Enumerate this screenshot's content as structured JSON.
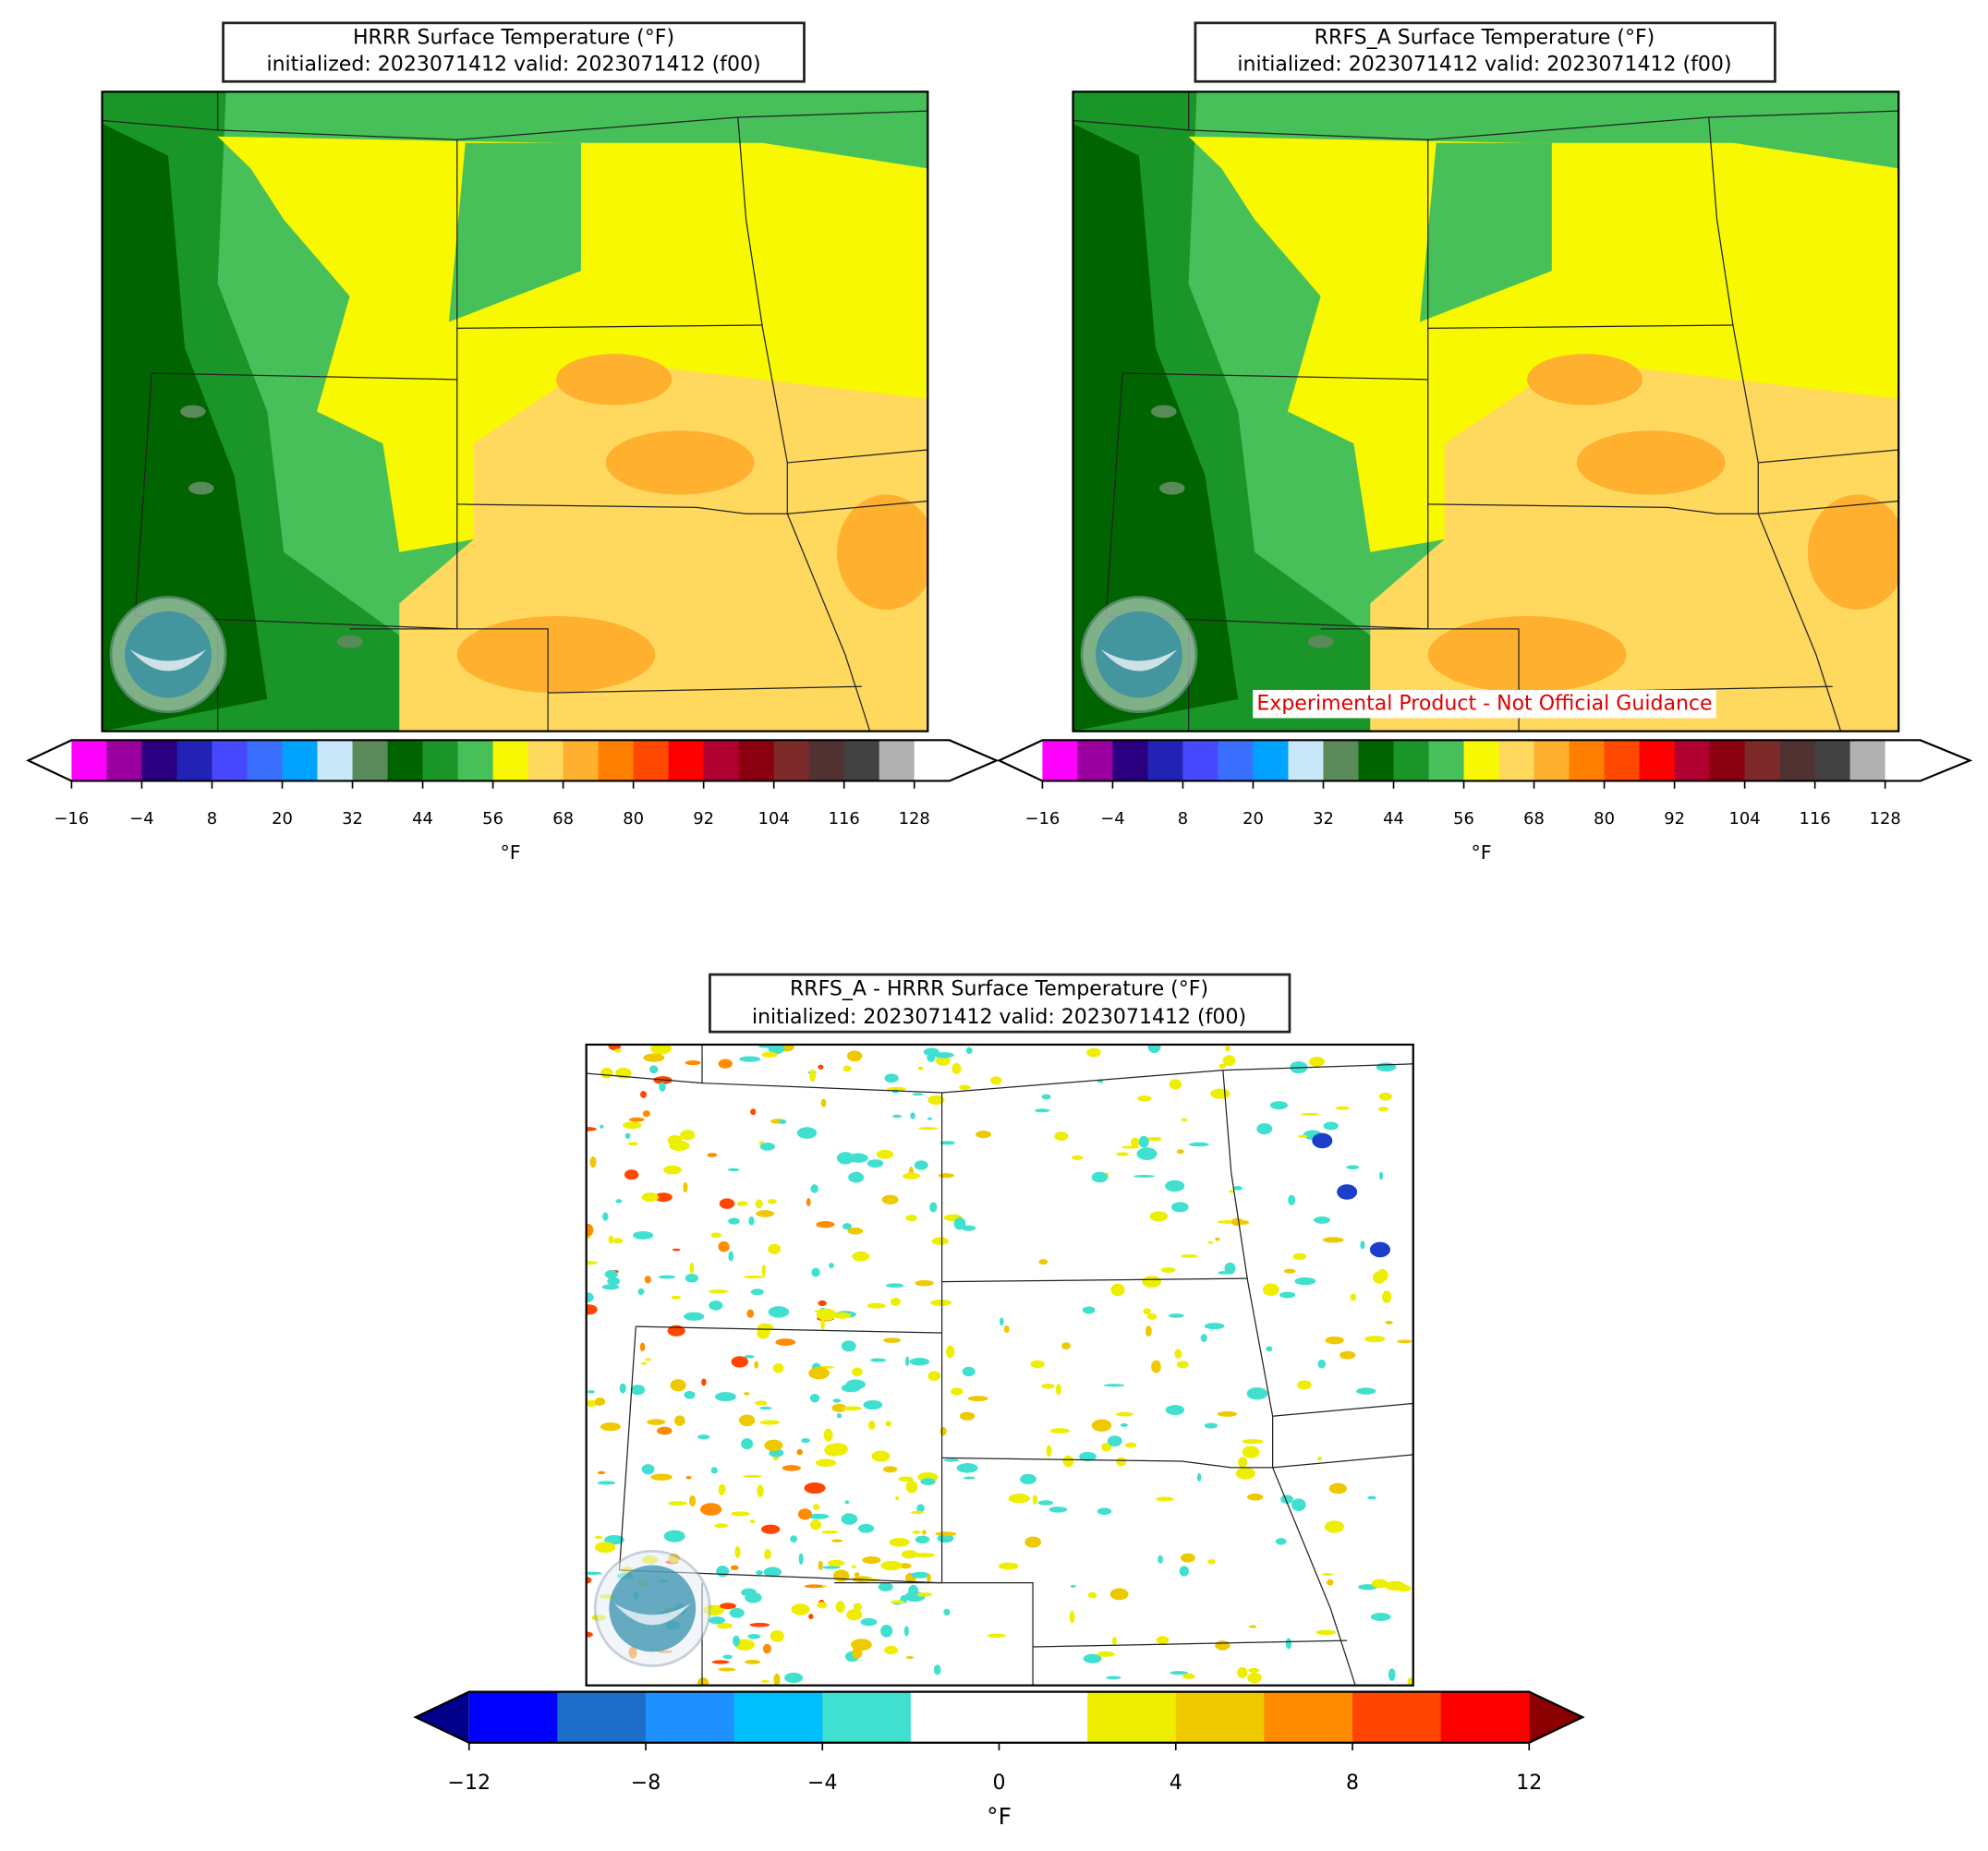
{
  "panels": [
    {
      "title_lines": [
        "HRRR Surface Temperature (°F)",
        "initialized: 2023071412 valid: 2023071412 (f00)"
      ],
      "map_kind": "temperature",
      "colorbar": {
        "label": "°F",
        "levels": [
          -16,
          -10,
          -4,
          2,
          8,
          14,
          20,
          26,
          32,
          38,
          44,
          50,
          56,
          62,
          68,
          74,
          80,
          86,
          92,
          98,
          104,
          110,
          116,
          122,
          128,
          134
        ],
        "colors": [
          "#ff00ff",
          "#99009f",
          "#2b0080",
          "#2222b4",
          "#4848ff",
          "#3a6fff",
          "#00a2ff",
          "#c8e8fa",
          "#5a8a5a",
          "#006400",
          "#1a9628",
          "#48c05a",
          "#f8f800",
          "#ffd85e",
          "#ffb02e",
          "#ff8000",
          "#ff4800",
          "#ff0000",
          "#b00030",
          "#8a0010",
          "#7c2a2a",
          "#503232",
          "#424242",
          "#b0b0b0",
          "#ffffff"
        ],
        "extend_colors": [
          "#ffffff",
          "#ffffff"
        ],
        "ticks": [
          {
            "value": -16,
            "label": "−16"
          },
          {
            "value": -4,
            "label": "−4"
          },
          8,
          20,
          32,
          44,
          56,
          68,
          80,
          92,
          104,
          116,
          128
        ]
      }
    },
    {
      "title_lines": [
        "RRFS_A Surface Temperature (°F)",
        "initialized: 2023071412 valid: 2023071412 (f00)"
      ],
      "map_kind": "temperature",
      "annotation": "Experimental Product - Not Official Guidance",
      "colorbar": {
        "label": "°F",
        "levels": [
          -16,
          -10,
          -4,
          2,
          8,
          14,
          20,
          26,
          32,
          38,
          44,
          50,
          56,
          62,
          68,
          74,
          80,
          86,
          92,
          98,
          104,
          110,
          116,
          122,
          128,
          134
        ],
        "colors": [
          "#ff00ff",
          "#99009f",
          "#2b0080",
          "#2222b4",
          "#4848ff",
          "#3a6fff",
          "#00a2ff",
          "#c8e8fa",
          "#5a8a5a",
          "#006400",
          "#1a9628",
          "#48c05a",
          "#f8f800",
          "#ffd85e",
          "#ffb02e",
          "#ff8000",
          "#ff4800",
          "#ff0000",
          "#b00030",
          "#8a0010",
          "#7c2a2a",
          "#503232",
          "#424242",
          "#b0b0b0",
          "#ffffff"
        ],
        "extend_colors": [
          "#ffffff",
          "#ffffff"
        ],
        "ticks": [
          {
            "value": -16,
            "label": "−16"
          },
          {
            "value": -4,
            "label": "−4"
          },
          8,
          20,
          32,
          44,
          56,
          68,
          80,
          92,
          104,
          116,
          128
        ]
      }
    },
    {
      "title_lines": [
        "RRFS_A - HRRR Surface Temperature (°F)",
        "initialized: 2023071412 valid: 2023071412 (f00)"
      ],
      "map_kind": "difference",
      "colorbar": {
        "label": "°F",
        "levels": [
          -12,
          -10,
          -8,
          -6,
          -4,
          -2,
          0,
          2,
          4,
          6,
          8,
          10,
          12
        ],
        "colors": [
          "#0000ff",
          "#1c6ec8",
          "#1e90ff",
          "#00bfff",
          "#40e0d0",
          "#ffffff",
          "#ffffff",
          "#eeee00",
          "#eec900",
          "#ff8c00",
          "#ff4500",
          "#ff0000"
        ],
        "extend_colors": [
          "#00008b",
          "#8b0000"
        ],
        "ticks": [
          {
            "value": -12,
            "label": "−12"
          },
          {
            "value": -8,
            "label": "−8"
          },
          {
            "value": -4,
            "label": "−4"
          },
          0,
          4,
          8,
          12
        ]
      }
    }
  ]
}
